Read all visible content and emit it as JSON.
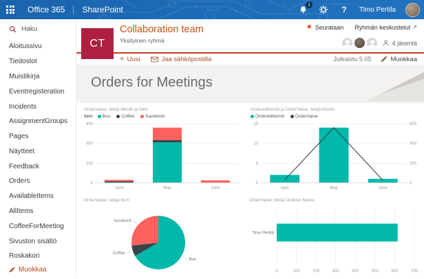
{
  "suitebar": {
    "brand": "Office 365",
    "product": "SharePoint",
    "notifications_badge": "1",
    "help_label": "?",
    "user_name": "Timo Pertila"
  },
  "sidebar": {
    "search_label": "Haku",
    "items": [
      "Aloitussivu",
      "Tiedostot",
      "Muistikirja",
      "Eventregisteration",
      "Incidents",
      "AssignmentGroups",
      "Pages",
      "Näytteet",
      "Feedback",
      "Orders",
      "AvailableItems",
      "AllItems",
      "CoffeeForMeeting",
      "Sivuston sisältö",
      "Roskakori"
    ],
    "edit_label": "Muokkaa"
  },
  "header": {
    "group_initials": "CT",
    "group_name": "Collaboration team",
    "group_type": "Yksityinen ryhmä",
    "follow_label": "Seurataan",
    "conversations_label": "Ryhmän keskustelut",
    "conversations_arrow": "↗",
    "members_label": "4 jäsentä"
  },
  "commandbar": {
    "new_label": "Uusi",
    "share_label": "Jaa sähköpostilla",
    "published_label": "Julkaistu 5.05",
    "edit_label": "Muokkaa"
  },
  "page": {
    "title": "Orders for Meetings"
  },
  "colors": {
    "suite_blue": "#1E6FB8",
    "accent_red_line": "#C03B1C",
    "group_tile": "#AE2040",
    "group_title": "#CA5010",
    "teal": "#01B8AA",
    "dark": "#374649",
    "red": "#FD625E"
  },
  "chart_data": [
    {
      "type": "bar",
      "stacked": true,
      "title": "OrderValue, tekijä Month ja Item",
      "legend_title": "Item",
      "categories": [
        "April",
        "May",
        "June"
      ],
      "series": [
        {
          "name": "Bun",
          "color": "#01B8AA",
          "values": [
            0,
            410,
            0
          ]
        },
        {
          "name": "Coffee",
          "color": "#374649",
          "values": [
            15,
            25,
            0
          ]
        },
        {
          "name": "Sandwich",
          "color": "#FD625E",
          "values": [
            15,
            125,
            25
          ]
        }
      ],
      "ylim": [
        0,
        600
      ],
      "yticks": [
        0,
        200,
        400,
        600
      ],
      "grid": true,
      "legend_position": "top"
    },
    {
      "type": "combo",
      "title": "OrderedItemId ja OrderValue, tekijä Month",
      "categories": [
        "April",
        "May",
        "June"
      ],
      "bar_series": {
        "name": "OrderedItemId",
        "color": "#01B8AA",
        "values": [
          2,
          14,
          1
        ],
        "ylim": [
          0,
          15
        ],
        "yticks": [
          0,
          5,
          10,
          15
        ]
      },
      "line_series": {
        "name": "OrderValue",
        "color": "#374649",
        "values": [
          30,
          560,
          25
        ],
        "ylim": [
          0,
          600
        ],
        "yticks": [
          0,
          200,
          400,
          600
        ]
      },
      "grid": true,
      "legend_position": "top"
    },
    {
      "type": "pie",
      "title": "OrderValue, tekijä Item",
      "slices": [
        {
          "name": "Bun",
          "color": "#01B8AA",
          "value": 410
        },
        {
          "name": "Coffee",
          "color": "#374649",
          "value": 40
        },
        {
          "name": "Sandwich",
          "color": "#FD625E",
          "value": 165
        }
      ]
    },
    {
      "type": "hbar",
      "title": "OrderValue, tekijä Orderer Name",
      "categories": [
        "Timo Pertilä"
      ],
      "values": [
        615
      ],
      "color": "#01B8AA",
      "xlim": [
        0,
        700
      ],
      "xticks": [
        0,
        100,
        200,
        300,
        400,
        500,
        600,
        700
      ],
      "grid": true
    }
  ]
}
